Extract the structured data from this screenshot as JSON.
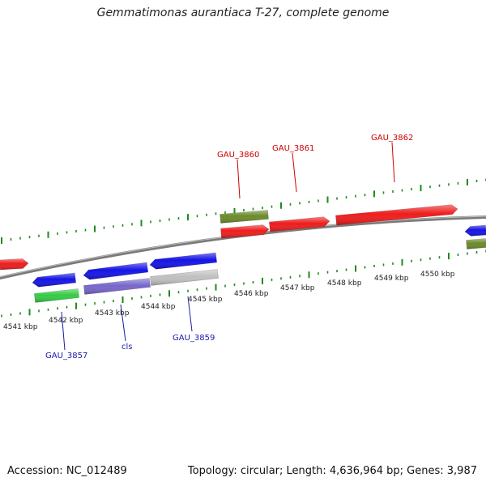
{
  "title": "Gemmatimonas aurantiaca T-27, complete genome",
  "footer": {
    "accession": "Accession: NC_012489",
    "summary": "Topology: circular; Length: 4,636,964 bp; Genes: 3,987"
  },
  "colors": {
    "backbone": "#7a7a7a",
    "tick": "#1e8a1e",
    "red": "#ef1c1c",
    "blue": "#1414e6",
    "olive": "#6b8a2a",
    "green": "#33cc44",
    "purple": "#7766cc",
    "grey": "#c0c0c0",
    "label_red": "#cc0000",
    "label_blue": "#1a1aa8"
  },
  "scale_labels": [
    "4541 kbp",
    "4542 kbp",
    "4543 kbp",
    "4544 kbp",
    "4545 kbp",
    "4546 kbp",
    "4547 kbp",
    "4548 kbp",
    "4549 kbp",
    "4550 kbp"
  ],
  "gene_labels": {
    "upper": [
      "GAU_3860",
      "GAU_3861",
      "GAU_3862"
    ],
    "lower": [
      "GAU_3857",
      "cls",
      "GAU_3859"
    ]
  }
}
